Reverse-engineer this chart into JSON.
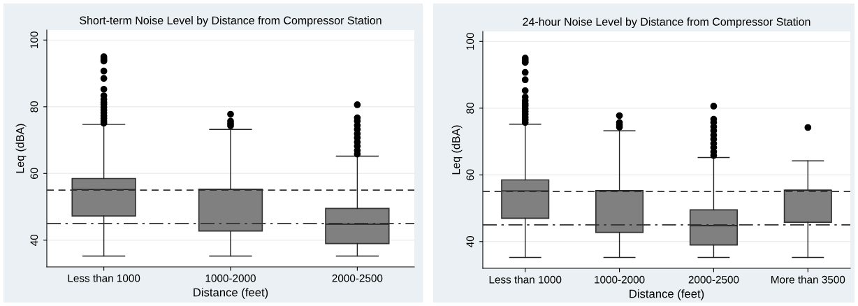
{
  "chart_data": [
    {
      "type": "box",
      "title": "Short-term Noise Level by Distance from Compressor Station",
      "xlabel": "Distance (feet)",
      "ylabel": "Leq (dBA)",
      "categories": [
        "Less than 1000",
        "1000-2000",
        "2000-2500"
      ],
      "boxes": [
        {
          "low": 35.25,
          "q1": 47.25,
          "median": 55.2,
          "q3": 58.5,
          "high": 74.7,
          "outliers": [
            95,
            94.5,
            94,
            93.7,
            90.7,
            88.5,
            85.25,
            83.3,
            82.2,
            81.3,
            80.7,
            79.8,
            79,
            78.2,
            77.3,
            76.5,
            75.7,
            75.1
          ]
        },
        {
          "low": 35.25,
          "q1": 42.75,
          "median": 55.25,
          "q3": 55.3,
          "high": 73.2,
          "outliers": [
            77.75,
            75.7,
            75,
            74.3
          ]
        },
        {
          "low": 35.25,
          "q1": 39,
          "median": 44.8,
          "q3": 49.5,
          "high": 65.2,
          "outliers": [
            80.6,
            76.7,
            75.7,
            74.4,
            73.2,
            71.9,
            70.7,
            69.4,
            68.2,
            66.9,
            65.8
          ]
        }
      ],
      "color": "#808080",
      "ylim": [
        32,
        103
      ],
      "yticks": [
        40,
        60,
        80,
        100
      ],
      "grid": "y",
      "ref_lines": [
        {
          "axis": "y",
          "value": 55,
          "line_style": "dashed"
        },
        {
          "axis": "y",
          "value": 45,
          "line_style": "dashdot"
        }
      ]
    },
    {
      "type": "box",
      "title": "24-hour Noise Level by Distance from Compressor Station",
      "xlabel": "Distance (feet)",
      "ylabel": "Leq (dBA)",
      "categories": [
        "Less than 1000",
        "1000-2000",
        "2000-2500",
        "More than 3500"
      ],
      "boxes": [
        {
          "low": 35.25,
          "q1": 47,
          "median": 55.2,
          "q3": 58.5,
          "high": 75.2,
          "outliers": [
            95,
            94.5,
            94,
            93.7,
            90.7,
            88.5,
            85.25,
            83.3,
            82.2,
            81.3,
            80.7,
            79.8,
            79,
            78.2,
            77.3,
            76.5,
            75.7
          ]
        },
        {
          "low": 35.25,
          "q1": 42.75,
          "median": 55.25,
          "q3": 55.3,
          "high": 73.2,
          "outliers": [
            77.75,
            75.7,
            75,
            74.3
          ]
        },
        {
          "low": 35.25,
          "q1": 39,
          "median": 44.8,
          "q3": 49.5,
          "high": 65.2,
          "outliers": [
            80.6,
            76.7,
            75.7,
            74.4,
            73.2,
            71.9,
            70.7,
            69.4,
            68.2,
            66.9,
            65.8
          ]
        },
        {
          "low": 35.25,
          "q1": 45.8,
          "median": 55.4,
          "q3": 55.4,
          "high": 64.2,
          "outliers": [
            74.2
          ]
        }
      ],
      "color": "#808080",
      "ylim": [
        32,
        103
      ],
      "yticks": [
        40,
        60,
        80,
        100
      ],
      "grid": "y",
      "ref_lines": [
        {
          "axis": "y",
          "value": 55,
          "line_style": "dashed"
        },
        {
          "axis": "y",
          "value": 45,
          "line_style": "dashdot"
        }
      ]
    }
  ]
}
